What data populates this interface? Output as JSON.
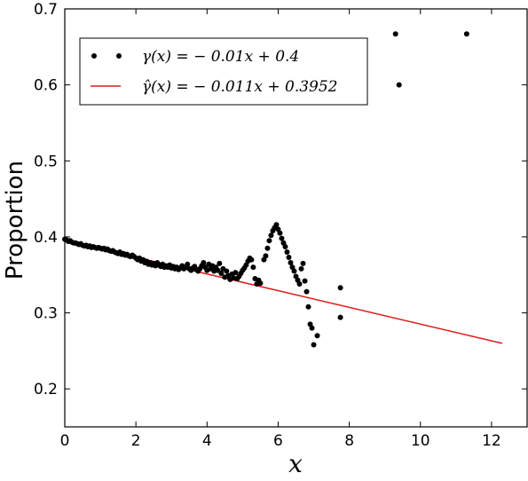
{
  "chart_data": {
    "type": "scatter",
    "title": "",
    "xlabel": "x",
    "ylabel": "Proportion",
    "xlim": [
      0,
      13
    ],
    "ylim": [
      0.15,
      0.7
    ],
    "x_ticks": [
      0,
      2,
      4,
      6,
      8,
      10,
      12
    ],
    "y_ticks": [
      0.2,
      0.3,
      0.4,
      0.5,
      0.6,
      0.7
    ],
    "x_tick_labels": [
      "0",
      "2",
      "4",
      "6",
      "8",
      "10",
      "12"
    ],
    "y_tick_labels": [
      "0.2",
      "0.3",
      "0.4",
      "0.5",
      "0.6",
      "0.7"
    ],
    "grid": false,
    "legend_position": "top-left",
    "series": [
      {
        "name": "γ(x) = − 0.01x + 0.4",
        "kind": "points",
        "color": "#000000",
        "points": [
          [
            0.0,
            0.397
          ],
          [
            0.05,
            0.396
          ],
          [
            0.1,
            0.394
          ],
          [
            0.15,
            0.395
          ],
          [
            0.2,
            0.393
          ],
          [
            0.25,
            0.392
          ],
          [
            0.3,
            0.392
          ],
          [
            0.35,
            0.391
          ],
          [
            0.4,
            0.39
          ],
          [
            0.45,
            0.391
          ],
          [
            0.5,
            0.389
          ],
          [
            0.55,
            0.388
          ],
          [
            0.6,
            0.389
          ],
          [
            0.65,
            0.387
          ],
          [
            0.7,
            0.388
          ],
          [
            0.75,
            0.386
          ],
          [
            0.8,
            0.387
          ],
          [
            0.85,
            0.386
          ],
          [
            0.9,
            0.385
          ],
          [
            0.95,
            0.386
          ],
          [
            1.0,
            0.385
          ],
          [
            1.05,
            0.384
          ],
          [
            1.1,
            0.385
          ],
          [
            1.15,
            0.383
          ],
          [
            1.2,
            0.384
          ],
          [
            1.25,
            0.382
          ],
          [
            1.3,
            0.381
          ],
          [
            1.35,
            0.382
          ],
          [
            1.4,
            0.38
          ],
          [
            1.45,
            0.379
          ],
          [
            1.5,
            0.378
          ],
          [
            1.55,
            0.38
          ],
          [
            1.6,
            0.377
          ],
          [
            1.65,
            0.378
          ],
          [
            1.7,
            0.376
          ],
          [
            1.75,
            0.377
          ],
          [
            1.8,
            0.375
          ],
          [
            1.85,
            0.374
          ],
          [
            1.9,
            0.376
          ],
          [
            1.95,
            0.374
          ],
          [
            2.0,
            0.372
          ],
          [
            2.05,
            0.37
          ],
          [
            2.1,
            0.372
          ],
          [
            2.15,
            0.368
          ],
          [
            2.2,
            0.37
          ],
          [
            2.25,
            0.366
          ],
          [
            2.3,
            0.368
          ],
          [
            2.35,
            0.364
          ],
          [
            2.4,
            0.366
          ],
          [
            2.45,
            0.363
          ],
          [
            2.5,
            0.365
          ],
          [
            2.55,
            0.362
          ],
          [
            2.6,
            0.366
          ],
          [
            2.65,
            0.363
          ],
          [
            2.7,
            0.361
          ],
          [
            2.75,
            0.364
          ],
          [
            2.8,
            0.36
          ],
          [
            2.85,
            0.362
          ],
          [
            2.9,
            0.36
          ],
          [
            2.95,
            0.363
          ],
          [
            3.0,
            0.359
          ],
          [
            3.05,
            0.361
          ],
          [
            3.1,
            0.358
          ],
          [
            3.15,
            0.36
          ],
          [
            3.2,
            0.357
          ],
          [
            3.25,
            0.359
          ],
          [
            3.3,
            0.362
          ],
          [
            3.35,
            0.358
          ],
          [
            3.4,
            0.36
          ],
          [
            3.45,
            0.364
          ],
          [
            3.5,
            0.358
          ],
          [
            3.55,
            0.356
          ],
          [
            3.6,
            0.359
          ],
          [
            3.65,
            0.361
          ],
          [
            3.7,
            0.357
          ],
          [
            3.75,
            0.355
          ],
          [
            3.8,
            0.358
          ],
          [
            3.85,
            0.362
          ],
          [
            3.9,
            0.366
          ],
          [
            3.95,
            0.36
          ],
          [
            4.0,
            0.356
          ],
          [
            4.05,
            0.364
          ],
          [
            4.1,
            0.358
          ],
          [
            4.15,
            0.362
          ],
          [
            4.2,
            0.355
          ],
          [
            4.25,
            0.36
          ],
          [
            4.3,
            0.356
          ],
          [
            4.35,
            0.365
          ],
          [
            4.4,
            0.352
          ],
          [
            4.45,
            0.358
          ],
          [
            4.5,
            0.347
          ],
          [
            4.55,
            0.355
          ],
          [
            4.6,
            0.349
          ],
          [
            4.65,
            0.344
          ],
          [
            4.7,
            0.351
          ],
          [
            4.75,
            0.346
          ],
          [
            4.8,
            0.353
          ],
          [
            4.85,
            0.345
          ],
          [
            4.9,
            0.348
          ],
          [
            4.95,
            0.352
          ],
          [
            5.0,
            0.356
          ],
          [
            5.05,
            0.359
          ],
          [
            5.1,
            0.363
          ],
          [
            5.15,
            0.368
          ],
          [
            5.2,
            0.372
          ],
          [
            5.25,
            0.37
          ],
          [
            5.3,
            0.36
          ],
          [
            5.35,
            0.345
          ],
          [
            5.4,
            0.338
          ],
          [
            5.45,
            0.343
          ],
          [
            5.5,
            0.339
          ],
          [
            5.6,
            0.37
          ],
          [
            5.65,
            0.375
          ],
          [
            5.7,
            0.385
          ],
          [
            5.75,
            0.395
          ],
          [
            5.8,
            0.402
          ],
          [
            5.85,
            0.408
          ],
          [
            5.9,
            0.412
          ],
          [
            5.95,
            0.416
          ],
          [
            6.0,
            0.41
          ],
          [
            6.05,
            0.405
          ],
          [
            6.1,
            0.398
          ],
          [
            6.15,
            0.392
          ],
          [
            6.2,
            0.387
          ],
          [
            6.25,
            0.38
          ],
          [
            6.3,
            0.373
          ],
          [
            6.35,
            0.366
          ],
          [
            6.4,
            0.36
          ],
          [
            6.45,
            0.355
          ],
          [
            6.5,
            0.348
          ],
          [
            6.55,
            0.343
          ],
          [
            6.6,
            0.338
          ],
          [
            6.65,
            0.358
          ],
          [
            6.7,
            0.365
          ],
          [
            6.75,
            0.342
          ],
          [
            6.8,
            0.328
          ],
          [
            6.85,
            0.308
          ],
          [
            6.9,
            0.285
          ],
          [
            6.95,
            0.28
          ],
          [
            7.0,
            0.258
          ],
          [
            7.1,
            0.27
          ],
          [
            7.75,
            0.333
          ],
          [
            7.75,
            0.294
          ],
          [
            9.3,
            0.667
          ],
          [
            9.4,
            0.6
          ],
          [
            11.3,
            0.667
          ]
        ]
      },
      {
        "name": "γ̂(x) = − 0.011x + 0.3952",
        "kind": "line",
        "color": "#dd1c1c",
        "slope": -0.011,
        "intercept": 0.3952,
        "x_range": [
          0,
          12.3
        ]
      }
    ]
  }
}
